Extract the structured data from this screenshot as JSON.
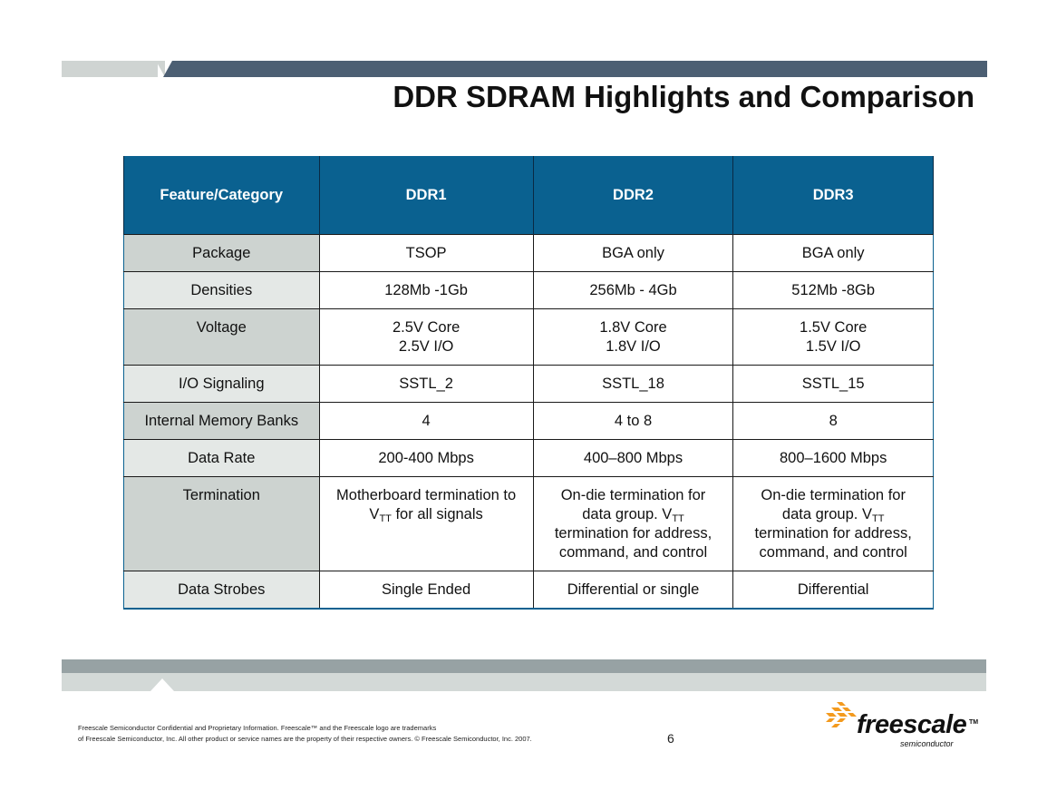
{
  "slide": {
    "title": "DDR SDRAM Highlights and Comparison",
    "page_number": "6"
  },
  "table": {
    "headers": [
      "Feature/Category",
      "DDR1",
      "DDR2",
      "DDR3"
    ],
    "rows": [
      {
        "category": "Package",
        "ddr1": [
          "TSOP"
        ],
        "ddr2": [
          "BGA only"
        ],
        "ddr3": [
          "BGA only"
        ]
      },
      {
        "category": "Densities",
        "ddr1": [
          "128Mb -1Gb"
        ],
        "ddr2": [
          "256Mb - 4Gb"
        ],
        "ddr3": [
          "512Mb -8Gb"
        ]
      },
      {
        "category": "Voltage",
        "ddr1": [
          "2.5V Core",
          "2.5V I/O"
        ],
        "ddr2": [
          "1.8V Core",
          "1.8V I/O"
        ],
        "ddr3": [
          "1.5V Core",
          "1.5V I/O"
        ]
      },
      {
        "category": "I/O Signaling",
        "ddr1": [
          "SSTL_2"
        ],
        "ddr2": [
          "SSTL_18"
        ],
        "ddr3": [
          "SSTL_15"
        ]
      },
      {
        "category": "Internal Memory Banks",
        "ddr1": [
          "4"
        ],
        "ddr2": [
          "4 to 8"
        ],
        "ddr3": [
          "8"
        ]
      },
      {
        "category": "Data Rate",
        "ddr1": [
          "200-400 Mbps"
        ],
        "ddr2": [
          "400–800 Mbps"
        ],
        "ddr3": [
          "800–1600 Mbps"
        ]
      },
      {
        "category": "Termination",
        "ddr1": {
          "p1": "Motherboard termination to",
          "v": "V",
          "sub": "TT",
          "p2": " for all signals"
        },
        "ddr2": {
          "p1": "On-die termination for",
          "p2a": "data group. V",
          "sub": "TT",
          "p3": "termination for address,",
          "p4": "command, and control"
        },
        "ddr3": {
          "p1": "On-die termination for",
          "p2a": "data group. V",
          "sub": "TT",
          "p3": "termination for address,",
          "p4": "command, and control"
        }
      },
      {
        "category": "Data Strobes",
        "ddr1": [
          "Single Ended"
        ],
        "ddr2": [
          "Differential or single"
        ],
        "ddr3": [
          "Differential"
        ]
      }
    ]
  },
  "footer": {
    "line1": "Freescale Semiconductor Confidential and Proprietary Information. Freescale™ and the Freescale logo are trademarks",
    "line2": "of Freescale Semiconductor, Inc. All other product or service names are the property of their respective owners. © Freescale Semiconductor, Inc. 2007."
  },
  "logo": {
    "word": "freescale",
    "tm": "TM",
    "sub": "semiconductor",
    "icon": "freescale-chevron-logo-icon",
    "colors": {
      "orange": "#f39a1e",
      "dark": "#111111"
    }
  },
  "colors": {
    "header_bg": "#0a6190",
    "top_bar": "#4c5f73",
    "category_cell": "#cdd3d0"
  }
}
